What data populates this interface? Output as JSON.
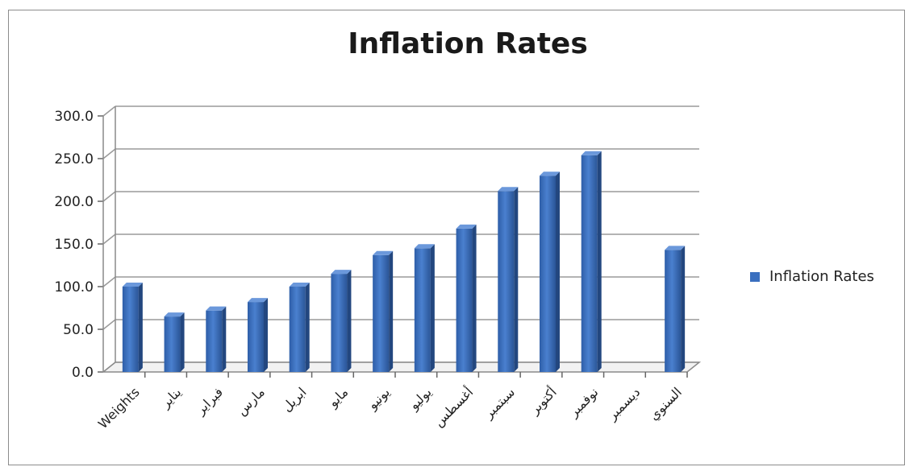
{
  "chart_data": {
    "type": "bar",
    "title": "Inflation Rates",
    "categories": [
      "Weights",
      "يناير",
      "فبراير",
      "مارس",
      "ابريل",
      "مايو",
      "يونيو",
      "يوليو",
      "أغسطس",
      "سبتمبر",
      "أكتوبر",
      "نوفمبر",
      "ديسمبر",
      "السنوي"
    ],
    "series": [
      {
        "name": "Inflation Rates",
        "values": [
          100.0,
          65.0,
          72.0,
          82.0,
          100.0,
          115.0,
          137.0,
          145.0,
          168.0,
          212.0,
          230.0,
          254.0,
          null,
          143.0
        ]
      }
    ],
    "ylim": [
      0,
      300
    ],
    "yticks": [
      "0.0",
      "50.0",
      "100.0",
      "150.0",
      "200.0",
      "250.0",
      "300.0"
    ],
    "grid": true,
    "legend_position": "right",
    "bar_color": "#3a6fbf"
  }
}
